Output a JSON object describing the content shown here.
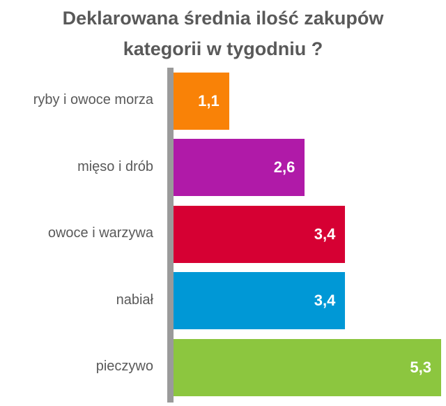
{
  "chart_data": {
    "type": "bar",
    "orientation": "horizontal",
    "title": "Deklarowana średnia ilość zakupów kategorii w tygodniu ?",
    "title_lines": [
      "Deklarowana średnia ilość zakupów",
      "kategorii w tygodniu ?"
    ],
    "categories": [
      "ryby i owoce morza",
      "mięso i drób",
      "owoce i warzywa",
      "nabiał",
      "pieczywo"
    ],
    "values": [
      1.1,
      2.6,
      3.4,
      3.4,
      5.3
    ],
    "value_labels": [
      "1,1",
      "2,6",
      "3,4",
      "3,4",
      "5,3"
    ],
    "colors": [
      "#f98207",
      "#b01aa8",
      "#d60033",
      "#0098d6",
      "#8cc63f"
    ],
    "xlabel": "",
    "ylabel": "",
    "grid": false,
    "legend": false
  }
}
